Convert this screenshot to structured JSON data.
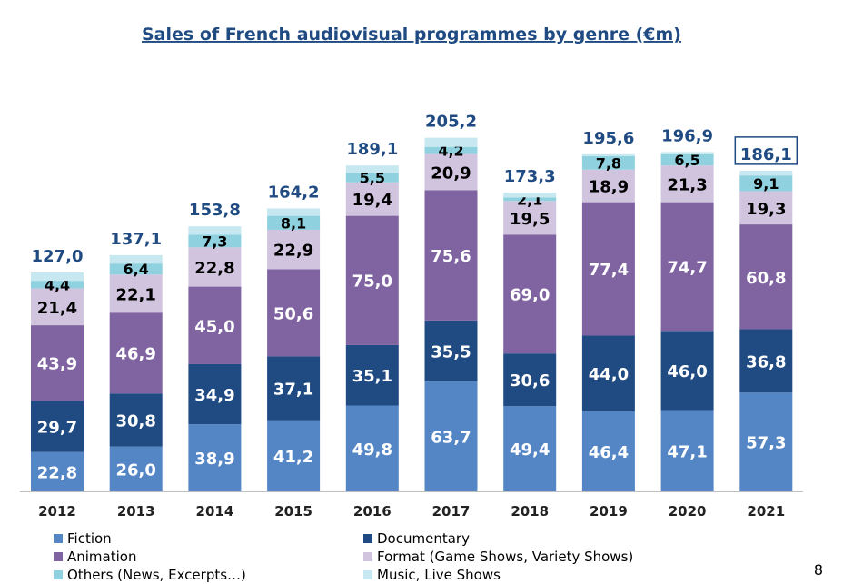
{
  "chart_data": {
    "type": "bar",
    "stacked": true,
    "title": "Sales of French audiovisual programmes by genre (€m)",
    "categories": [
      "2012",
      "2013",
      "2014",
      "2015",
      "2016",
      "2017",
      "2018",
      "2019",
      "2020",
      "2021"
    ],
    "series": [
      {
        "name": "Fiction",
        "color": "#5486c6",
        "label_color": "#ffffff",
        "values": [
          22.8,
          26.0,
          38.9,
          41.2,
          49.8,
          63.7,
          49.4,
          46.4,
          47.1,
          57.3
        ],
        "labels": [
          "22,8",
          "26,0",
          "38,9",
          "41,2",
          "49,8",
          "63,7",
          "49,4",
          "46,4",
          "47,1",
          "57,3"
        ]
      },
      {
        "name": "Documentary",
        "color": "#1f4b82",
        "label_color": "#ffffff",
        "values": [
          29.7,
          30.8,
          34.9,
          37.1,
          35.1,
          35.5,
          30.6,
          44.0,
          46.0,
          36.8
        ],
        "labels": [
          "29,7",
          "30,8",
          "34,9",
          "37,1",
          "35,1",
          "35,5",
          "30,6",
          "44,0",
          "46,0",
          "36,8"
        ]
      },
      {
        "name": "Animation",
        "color": "#8064a2",
        "label_color": "#ffffff",
        "values": [
          43.9,
          46.9,
          45.0,
          50.6,
          75.0,
          75.6,
          69.0,
          77.4,
          74.7,
          60.8
        ],
        "labels": [
          "43,9",
          "46,9",
          "45,0",
          "50,6",
          "75,0",
          "75,6",
          "69,0",
          "77,4",
          "74,7",
          "60,8"
        ]
      },
      {
        "name": "Format (Game Shows, Variety Shows)",
        "color": "#d1c4df",
        "label_color": "#000000",
        "values": [
          21.4,
          22.1,
          22.8,
          22.9,
          19.4,
          20.9,
          19.5,
          18.9,
          21.3,
          19.3
        ],
        "labels": [
          "21,4",
          "22,1",
          "22,8",
          "22,9",
          "19,4",
          "20,9",
          "19,5",
          "18,9",
          "21,3",
          "19,3"
        ]
      },
      {
        "name": "Others (News, Excerpts…)",
        "color": "#8fd1df",
        "label_color": "#000000",
        "values": [
          4.4,
          6.4,
          7.3,
          8.1,
          5.5,
          4.2,
          2.1,
          7.8,
          6.5,
          9.1
        ],
        "labels": [
          "4,4",
          "6,4",
          "7,3",
          "8,1",
          "5,5",
          "4,2",
          "2,1",
          "7,8",
          "6,5",
          "9,1"
        ]
      },
      {
        "name": "Music, Live Shows",
        "color": "#c7e8f0",
        "label_color": "#000000",
        "values": [
          4.8,
          4.9,
          4.9,
          4.3,
          4.3,
          5.3,
          2.7,
          1.1,
          1.3,
          2.8
        ],
        "labels": null
      }
    ],
    "totals": [
      127.0,
      137.1,
      153.8,
      164.2,
      189.1,
      205.2,
      173.3,
      195.6,
      196.9,
      186.1
    ],
    "total_labels": [
      "127,0",
      "137,1",
      "153,8",
      "164,2",
      "189,1",
      "205,2",
      "173,3",
      "195,6",
      "196,9",
      "186,1"
    ],
    "highlighted_total_index": 9,
    "total_label_color": "#1f4b82",
    "ylim": [
      0,
      220
    ],
    "grid": false,
    "legend_position": "bottom",
    "xlabel": "",
    "ylabel": ""
  },
  "page_number": "8"
}
